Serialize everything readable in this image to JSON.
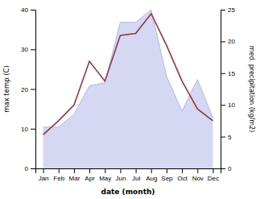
{
  "chart_data": {
    "type": "line",
    "categories": [
      "Jan",
      "Feb",
      "Mar",
      "Apr",
      "May",
      "Jun",
      "Jul",
      "Aug",
      "Sep",
      "Oct",
      "Nov",
      "Dec"
    ],
    "series": [
      {
        "type": "area",
        "axis": "y2",
        "color": "#b0b8e8",
        "values": [
          6.5,
          6.5,
          8.5,
          13.0,
          13.5,
          23.0,
          23.0,
          25.0,
          14.5,
          9.0,
          14.0,
          8.0
        ]
      },
      {
        "type": "line",
        "color": "#993344",
        "values": [
          8.5,
          12.0,
          16.0,
          27.0,
          22.0,
          33.5,
          34.0,
          39.0,
          31.0,
          22.0,
          15.0,
          12.0
        ]
      }
    ],
    "x_label": "date (month)",
    "y_label": "max temp (C)",
    "y2_label": "med. precipitation (kg/m2)",
    "ylim": [
      0,
      40
    ],
    "yticks": [
      0,
      10,
      20,
      30,
      40
    ],
    "y2lim": [
      0,
      25
    ],
    "y2ticks": [
      0,
      5,
      10,
      15,
      20,
      25
    ],
    "grid": false
  }
}
